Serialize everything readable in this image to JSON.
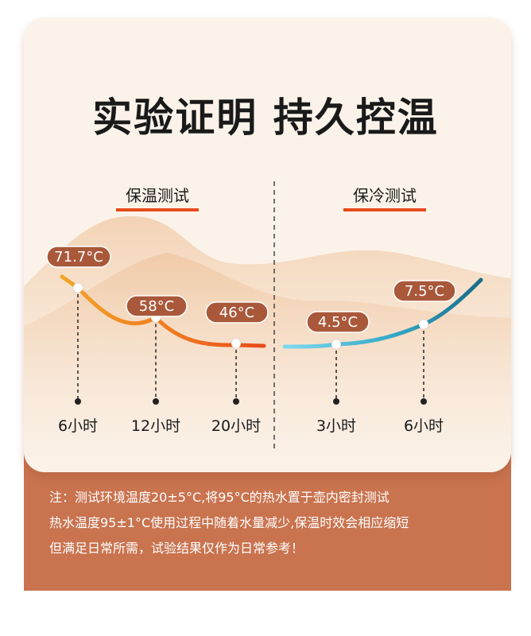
{
  "title": "实验证明 持久控温",
  "colors": {
    "accent": "#e84a1d",
    "badge": "#a9583a",
    "footer": "#c9734f"
  },
  "chart_data": [
    {
      "type": "line",
      "title": "保温测试",
      "x": [
        "6小时",
        "12小时",
        "20小时"
      ],
      "series": [
        {
          "values": [
            71.7,
            58,
            46
          ]
        }
      ],
      "labels": [
        "71.7°C",
        "58°C",
        "46°C"
      ]
    },
    {
      "type": "line",
      "title": "保冷测试",
      "x": [
        "3小时",
        "6小时"
      ],
      "series": [
        {
          "values": [
            4.5,
            7.5
          ]
        }
      ],
      "labels": [
        "4.5°C",
        "7.5°C"
      ]
    }
  ],
  "note": {
    "lines": [
      "注：测试环境温度20±5°C,将95°C的热水置于壶内密封测试",
      "热水温度95±1°C使用过程中随着水量减少,保温时效会相应缩短",
      "但满足日常所需，试验结果仅作为日常参考！"
    ]
  }
}
